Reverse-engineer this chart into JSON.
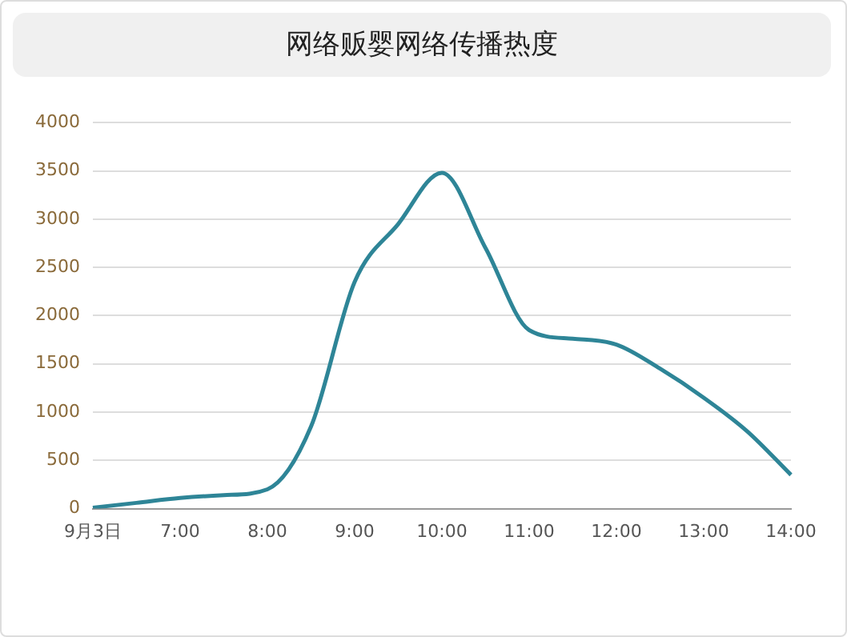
{
  "chart_data": {
    "type": "line",
    "title": "网络贩婴网络传播热度",
    "categories": [
      "9月3日",
      null,
      "7:00",
      null,
      "8:00",
      null,
      "9:00",
      null,
      "10:00",
      null,
      "11:00",
      null,
      "12:00",
      null,
      "13:00",
      null,
      "14:00"
    ],
    "series": [
      {
        "color": "#2e8597",
        "values": [
          10,
          60,
          110,
          140,
          200,
          850,
          2350,
          2950,
          3480,
          2700,
          1850,
          1760,
          1700,
          1450,
          1150,
          800,
          350
        ]
      }
    ],
    "ylim": [
      0,
      4000
    ],
    "yticks": [
      0,
      500,
      1000,
      1500,
      2000,
      2500,
      3000,
      3500,
      4000
    ],
    "grid": "y",
    "legend": false,
    "marker": "none",
    "line_style": "solid"
  }
}
